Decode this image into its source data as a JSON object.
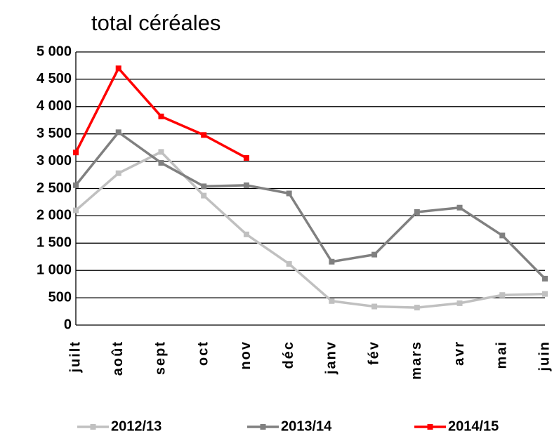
{
  "chart_data": {
    "type": "line",
    "title": "total céréales",
    "categories": [
      "juilt",
      "août",
      "sept",
      "oct",
      "nov",
      "déc",
      "janv",
      "fév",
      "mars",
      "avr",
      "mai",
      "juin"
    ],
    "series": [
      {
        "name": "2012/13",
        "color": "#c0c0c0",
        "values": [
          2100,
          2780,
          3170,
          2370,
          1660,
          1120,
          440,
          340,
          320,
          400,
          550,
          570
        ]
      },
      {
        "name": "2013/14",
        "color": "#808080",
        "values": [
          2560,
          3530,
          2970,
          2540,
          2560,
          2410,
          1160,
          1290,
          2070,
          2150,
          1640,
          850
        ]
      },
      {
        "name": "2014/15",
        "color": "#ff0000",
        "values": [
          3160,
          4700,
          3820,
          3480,
          3060,
          null,
          null,
          null,
          null,
          null,
          null,
          null
        ]
      }
    ],
    "ylim": [
      0,
      5000
    ],
    "yticks": [
      0,
      500,
      {
        "value": 1000,
        "label": "1 000"
      },
      {
        "value": 1500,
        "label": "1 500"
      },
      {
        "value": 2000,
        "label": "2 000"
      },
      {
        "value": 2500,
        "label": "2 500"
      },
      {
        "value": 3000,
        "label": "3 000"
      },
      {
        "value": 3500,
        "label": "3 500"
      },
      {
        "value": 4000,
        "label": "4 000"
      },
      {
        "value": 4500,
        "label": "4 500"
      },
      {
        "value": 5000,
        "label": "5 000"
      }
    ],
    "grid": true,
    "legend": "bottom"
  }
}
